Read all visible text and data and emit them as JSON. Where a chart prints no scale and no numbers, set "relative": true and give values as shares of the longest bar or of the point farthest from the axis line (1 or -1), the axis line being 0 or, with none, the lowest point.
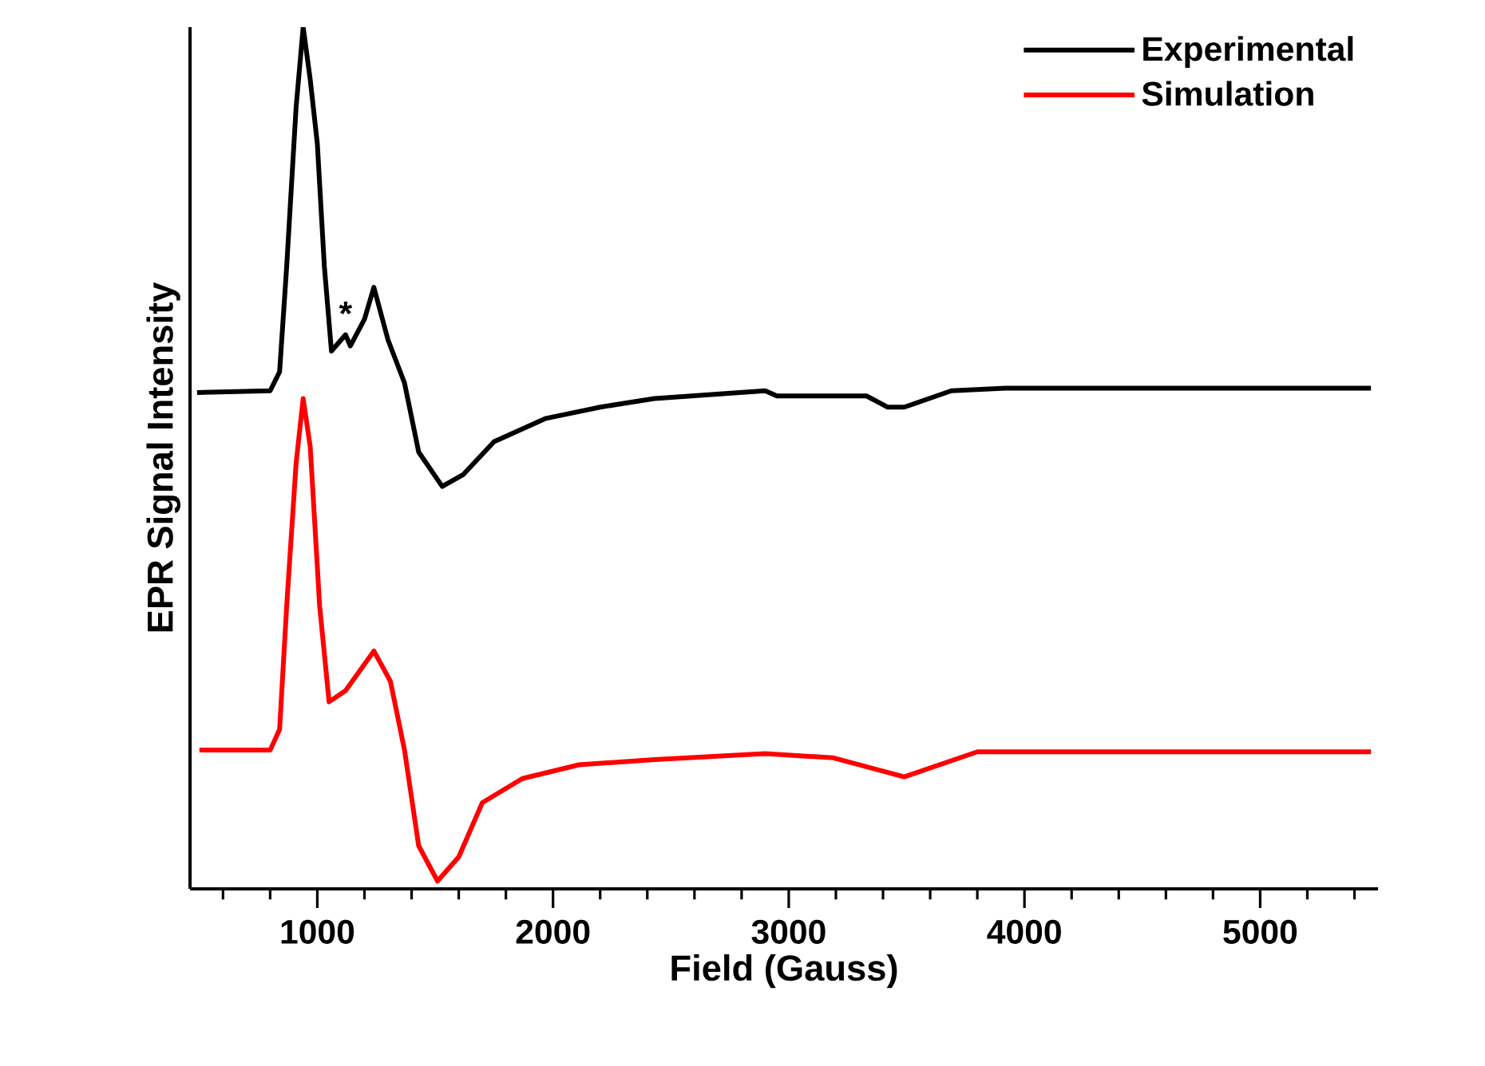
{
  "chart_data": {
    "type": "line",
    "relative": true,
    "xlabel": "Field (Gauss)",
    "ylabel": "EPR Signal Intensity",
    "xlim": [
      460,
      5500
    ],
    "xticks": [
      {
        "value": 600,
        "label": null
      },
      {
        "value": 800,
        "label": null
      },
      1000,
      {
        "value": 1200,
        "label": null
      },
      {
        "value": 1400,
        "label": null
      },
      {
        "value": 1600,
        "label": null
      },
      {
        "value": 1800,
        "label": null
      },
      2000,
      {
        "value": 2200,
        "label": null
      },
      {
        "value": 2400,
        "label": null
      },
      {
        "value": 2600,
        "label": null
      },
      {
        "value": 2800,
        "label": null
      },
      3000,
      {
        "value": 3200,
        "label": null
      },
      {
        "value": 3400,
        "label": null
      },
      {
        "value": 3600,
        "label": null
      },
      {
        "value": 3800,
        "label": null
      },
      4000,
      {
        "value": 4200,
        "label": null
      },
      {
        "value": 4400,
        "label": null
      },
      {
        "value": 4600,
        "label": null
      },
      {
        "value": 4800,
        "label": null
      },
      5000,
      {
        "value": 5200,
        "label": null
      },
      {
        "value": 5400,
        "label": null
      }
    ],
    "tick_labels": "x",
    "grid": false,
    "legend": "top right",
    "marker": "none",
    "line_style": "solid",
    "annotations": [
      {
        "text": "*",
        "x": 1120,
        "y": 0.643
      }
    ],
    "series": [
      {
        "name": "Experimental",
        "color": "#000000",
        "x": [
          490,
          800,
          840,
          870,
          910,
          940,
          970,
          1000,
          1030,
          1060,
          1120,
          1140,
          1200,
          1240,
          1300,
          1370,
          1430,
          1530,
          1620,
          1750,
          1970,
          2200,
          2430,
          2900,
          2950,
          3330,
          3420,
          3490,
          3690,
          3920,
          5470
        ],
        "values": [
          0.576,
          0.578,
          0.6,
          0.722,
          0.907,
          1.0,
          0.939,
          0.865,
          0.722,
          0.624,
          0.643,
          0.63,
          0.661,
          0.698,
          0.637,
          0.587,
          0.507,
          0.467,
          0.481,
          0.519,
          0.546,
          0.559,
          0.569,
          0.578,
          0.572,
          0.572,
          0.559,
          0.559,
          0.578,
          0.581,
          0.581
        ]
      },
      {
        "name": "Simulation",
        "color": "#ff0000",
        "x": [
          500,
          800,
          840,
          870,
          910,
          940,
          970,
          1010,
          1050,
          1120,
          1240,
          1310,
          1370,
          1430,
          1510,
          1600,
          1700,
          1870,
          2110,
          2430,
          2900,
          3190,
          3490,
          3800,
          5470
        ],
        "values": [
          0.161,
          0.161,
          0.185,
          0.328,
          0.494,
          0.569,
          0.513,
          0.328,
          0.217,
          0.23,
          0.276,
          0.241,
          0.161,
          0.05,
          0.009,
          0.037,
          0.1,
          0.128,
          0.144,
          0.15,
          0.157,
          0.152,
          0.13,
          0.159,
          0.159
        ]
      }
    ]
  }
}
